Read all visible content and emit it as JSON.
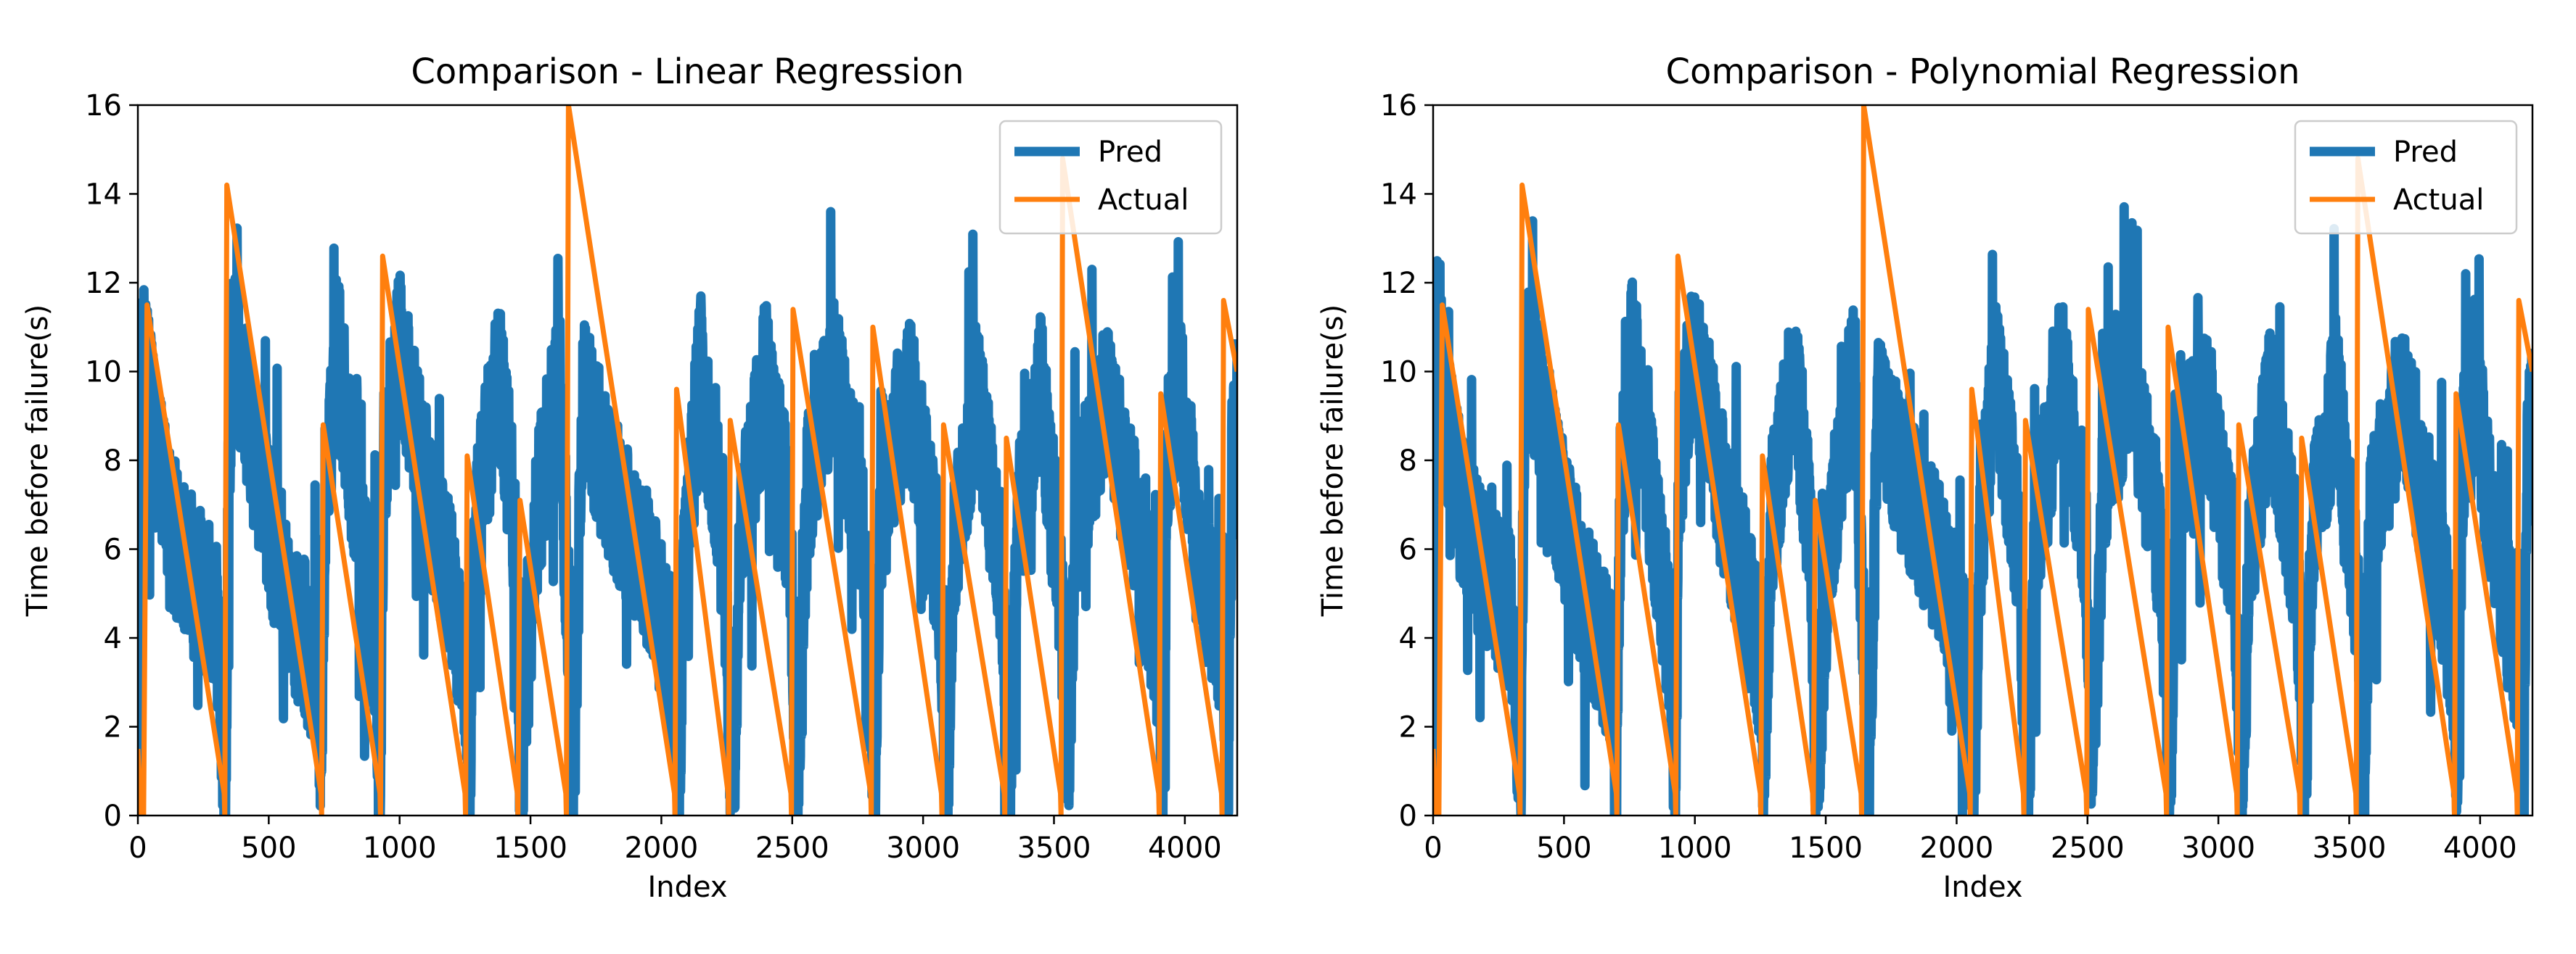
{
  "colors": {
    "pred": "#1f77b4",
    "actual": "#ff7f0e",
    "axis": "#000000",
    "legend_border": "#cccccc"
  },
  "chart_data": [
    {
      "type": "line",
      "title": "Comparison - Linear Regression",
      "xlabel": "Index",
      "ylabel": "Time before failure(s)",
      "xlim": [
        0,
        4200
      ],
      "ylim": [
        0,
        16
      ],
      "xticks": [
        0,
        500,
        1000,
        1500,
        2000,
        2500,
        3000,
        3500,
        4000
      ],
      "yticks": [
        0,
        2,
        4,
        6,
        8,
        10,
        12,
        14,
        16
      ],
      "grid": false,
      "legend_position": "top-right",
      "series": [
        {
          "name": "Pred",
          "style": "noisy",
          "seed": 7,
          "x": [
            0,
            8,
            15,
            30,
            60,
            120,
            200,
            300,
            335,
            345,
            360,
            420,
            500,
            600,
            690,
            700,
            715,
            760,
            850,
            910,
            925,
            940,
            1000,
            1100,
            1200,
            1250,
            1265,
            1290,
            1380,
            1440,
            1450,
            1460,
            1520,
            1610,
            1635,
            1650,
            1665,
            1700,
            1800,
            1950,
            2040,
            2050,
            2065,
            2090,
            2150,
            2240,
            2260,
            2275,
            2300,
            2400,
            2490,
            2505,
            2520,
            2560,
            2660,
            2780,
            2800,
            2815,
            2840,
            2950,
            3060,
            3075,
            3090,
            3120,
            3200,
            3300,
            3315,
            3330,
            3360,
            3450,
            3520,
            3540,
            3555,
            3580,
            3700,
            3850,
            3900,
            3915,
            3935,
            3975,
            4050,
            4150,
            4165,
            4180,
            4200
          ],
          "values": [
            0.5,
            6,
            10.5,
            10,
            8.5,
            6.5,
            5.5,
            4.5,
            0.5,
            7,
            11,
            9,
            6.5,
            4.5,
            3.2,
            0.5,
            7,
            10.5,
            6.5,
            3.5,
            0.5,
            8,
            10.5,
            7.5,
            5,
            3.5,
            0.5,
            6.5,
            10,
            6.5,
            4.5,
            0.5,
            6.5,
            10,
            5.5,
            3.8,
            0.5,
            9.5,
            7.5,
            5.5,
            3.5,
            2,
            0.5,
            6,
            10,
            6,
            2,
            0.5,
            6,
            10,
            6.5,
            3.5,
            0.5,
            7.5,
            10,
            6,
            3,
            0.5,
            7.5,
            9.5,
            5.5,
            3,
            0.5,
            6,
            9.5,
            5.5,
            3,
            0.5,
            6.5,
            9.5,
            5.5,
            3.5,
            0.5,
            6.5,
            9.5,
            5.5,
            3.5,
            0.5,
            8,
            10,
            6,
            3.5,
            0.5,
            8,
            9
          ]
        },
        {
          "name": "Actual",
          "x": [
            0,
            12,
            22,
            35,
            330,
            332,
            340,
            700,
            702,
            708,
            925,
            927,
            935,
            1250,
            1252,
            1258,
            1450,
            1452,
            1460,
            1635,
            1637,
            1645,
            2050,
            2052,
            2058,
            2255,
            2257,
            2263,
            2495,
            2497,
            2503,
            2800,
            2802,
            2808,
            3070,
            3072,
            3078,
            3310,
            3312,
            3318,
            3525,
            3527,
            3533,
            3900,
            3902,
            3908,
            4140,
            4142,
            4148,
            4200
          ],
          "values": [
            1.5,
            0,
            0,
            11.5,
            0.5,
            0,
            14.2,
            0.5,
            0,
            8.8,
            0.5,
            0,
            12.6,
            0.5,
            0,
            8.1,
            0.5,
            0,
            7.1,
            0.5,
            0,
            16,
            0.5,
            0,
            9.6,
            0.5,
            0,
            8.9,
            0.5,
            0,
            11.4,
            0.5,
            0,
            11,
            0.5,
            0,
            8.8,
            0.5,
            0,
            8.5,
            0.5,
            0,
            14.8,
            0.5,
            0,
            9.5,
            0.5,
            0,
            11.6,
            10
          ]
        }
      ]
    },
    {
      "type": "line",
      "title": "Comparison - Polynomial Regression",
      "xlabel": "Index",
      "ylabel": "Time before failure(s)",
      "xlim": [
        0,
        4200
      ],
      "ylim": [
        0,
        16
      ],
      "xticks": [
        0,
        500,
        1000,
        1500,
        2000,
        2500,
        3000,
        3500,
        4000
      ],
      "yticks": [
        0,
        2,
        4,
        6,
        8,
        10,
        12,
        14,
        16
      ],
      "grid": false,
      "legend_position": "top-right",
      "series": [
        {
          "name": "Pred",
          "style": "noisy",
          "seed": 13,
          "x": [
            0,
            8,
            15,
            30,
            60,
            120,
            200,
            300,
            335,
            345,
            360,
            420,
            500,
            600,
            690,
            700,
            715,
            760,
            850,
            910,
            925,
            940,
            1000,
            1100,
            1200,
            1250,
            1265,
            1290,
            1380,
            1440,
            1450,
            1460,
            1520,
            1610,
            1635,
            1650,
            1665,
            1700,
            1800,
            1950,
            2040,
            2050,
            2065,
            2090,
            2150,
            2240,
            2260,
            2275,
            2300,
            2400,
            2490,
            2505,
            2520,
            2560,
            2660,
            2780,
            2800,
            2815,
            2840,
            2950,
            3060,
            3075,
            3090,
            3120,
            3200,
            3300,
            3315,
            3330,
            3360,
            3450,
            3520,
            3540,
            3555,
            3580,
            3700,
            3850,
            3900,
            3915,
            3935,
            3975,
            4050,
            4150,
            4165,
            4180,
            4200
          ],
          "values": [
            0.5,
            6.5,
            11,
            10.5,
            8.5,
            6.5,
            5.5,
            4.5,
            0.5,
            7,
            11,
            9,
            6.5,
            4.5,
            3.2,
            0.5,
            7,
            10.5,
            6.5,
            3.5,
            0.5,
            8,
            10.5,
            7.5,
            5,
            3.5,
            0.5,
            6.5,
            10,
            6.5,
            4.5,
            0.5,
            6.5,
            10,
            5.5,
            3.8,
            0.5,
            9.5,
            7.5,
            5.5,
            3.5,
            2,
            0.5,
            6,
            10,
            6,
            2,
            0.5,
            6,
            10,
            6.5,
            3.5,
            0.5,
            7.5,
            10,
            6,
            3,
            0.5,
            7.5,
            9.5,
            5.5,
            3,
            0.5,
            6,
            9.5,
            5.5,
            3,
            0.5,
            6.5,
            9.5,
            5.5,
            3.5,
            0.5,
            6.5,
            9.5,
            5.5,
            3.5,
            0.5,
            8,
            10.5,
            6,
            3.5,
            0.5,
            8,
            9
          ]
        },
        {
          "name": "Actual",
          "x": [
            0,
            12,
            22,
            35,
            330,
            332,
            340,
            700,
            702,
            708,
            925,
            927,
            935,
            1250,
            1252,
            1258,
            1450,
            1452,
            1460,
            1635,
            1637,
            1645,
            2050,
            2052,
            2058,
            2255,
            2257,
            2263,
            2495,
            2497,
            2503,
            2800,
            2802,
            2808,
            3070,
            3072,
            3078,
            3310,
            3312,
            3318,
            3525,
            3527,
            3533,
            3900,
            3902,
            3908,
            4140,
            4142,
            4148,
            4200
          ],
          "values": [
            1.5,
            0,
            0,
            11.5,
            0.5,
            0,
            14.2,
            0.5,
            0,
            8.8,
            0.5,
            0,
            12.6,
            0.5,
            0,
            8.1,
            0.5,
            0,
            7.1,
            0.5,
            0,
            16,
            0.5,
            0,
            9.6,
            0.5,
            0,
            8.9,
            0.5,
            0,
            11.4,
            0.5,
            0,
            11,
            0.5,
            0,
            8.8,
            0.5,
            0,
            8.5,
            0.5,
            0,
            14.8,
            0.5,
            0,
            9.5,
            0.5,
            0,
            11.6,
            10
          ]
        }
      ]
    }
  ]
}
